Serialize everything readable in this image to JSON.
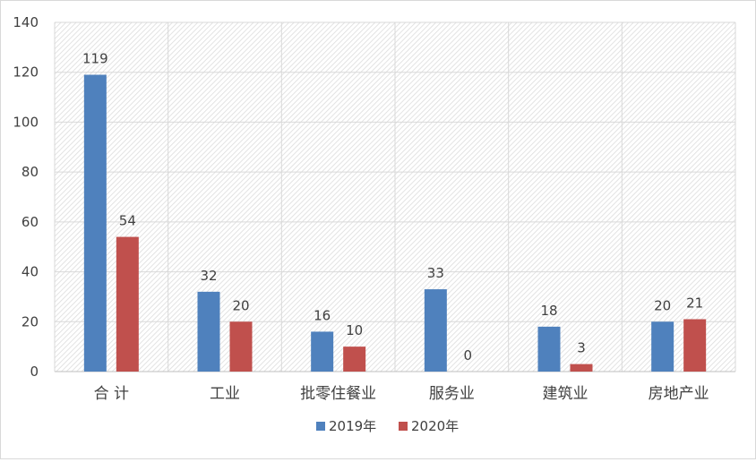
{
  "chart_data": {
    "type": "bar",
    "title": "",
    "xlabel": "",
    "ylabel": "",
    "categories": [
      "合 计",
      "工业",
      "批零住餐业",
      "服务业",
      "建筑业",
      "房地产业"
    ],
    "series": [
      {
        "name": "2019年",
        "color": "#4f81bd",
        "values": [
          119,
          32,
          16,
          33,
          18,
          20
        ]
      },
      {
        "name": "2020年",
        "color": "#c0504d",
        "values": [
          54,
          20,
          10,
          0,
          3,
          21
        ]
      }
    ],
    "ylim": [
      0,
      140
    ],
    "yticks": [
      0,
      20,
      40,
      60,
      80,
      100,
      120,
      140
    ],
    "grid": true,
    "plot_background": "hatched",
    "legend_position": "bottom"
  }
}
